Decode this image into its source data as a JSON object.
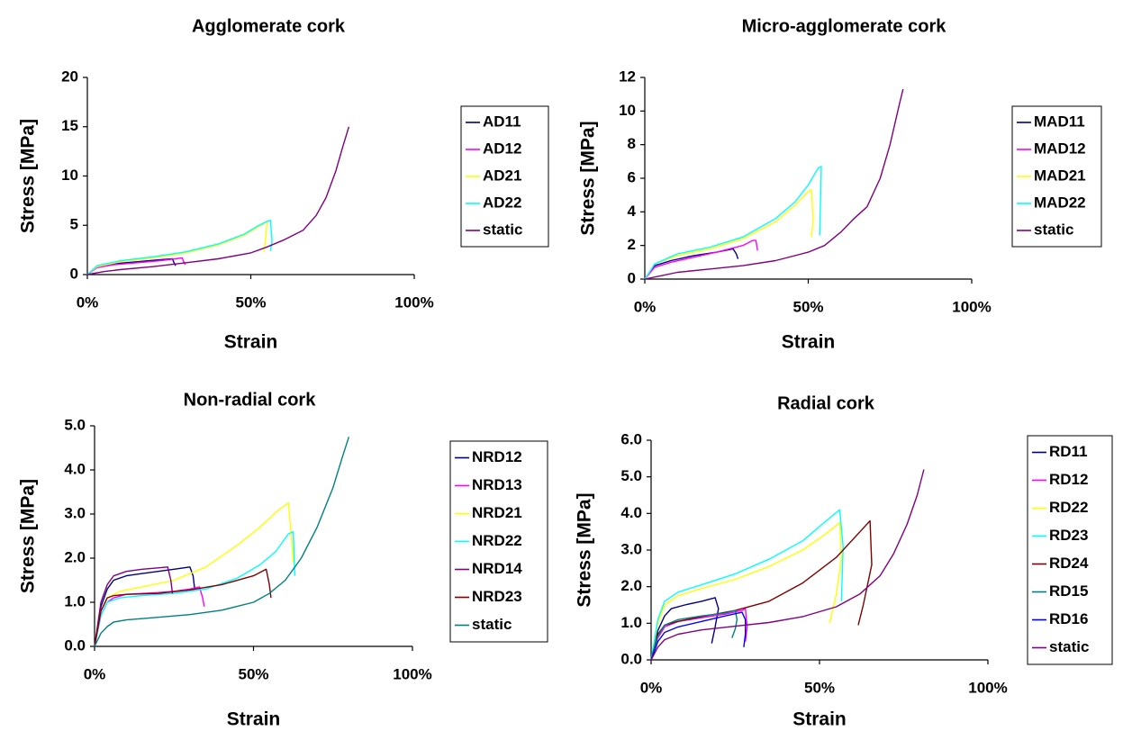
{
  "chart_data": [
    {
      "type": "line",
      "title": "Agglomerate cork",
      "xlabel": "Strain",
      "ylabel": "Stress [MPa]",
      "xlim": [
        0,
        100
      ],
      "ylim": [
        0,
        20
      ],
      "x_ticks": [
        "0%",
        "50%",
        "100%"
      ],
      "y_ticks": [
        "0",
        "5",
        "10",
        "15",
        "20"
      ],
      "legend_position": "right",
      "series": [
        {
          "name": "AD11",
          "color": "#000080",
          "x": [
            0,
            3,
            8,
            15,
            22,
            26,
            26.5,
            27
          ],
          "y": [
            0,
            0.8,
            1.1,
            1.3,
            1.5,
            1.6,
            1.2,
            0.9
          ]
        },
        {
          "name": "AD12",
          "color": "#ff00ff",
          "x": [
            0,
            3,
            8,
            15,
            22,
            27,
            29,
            29.5,
            30
          ],
          "y": [
            0,
            0.7,
            1.0,
            1.2,
            1.4,
            1.6,
            1.7,
            1.3,
            1.0
          ]
        },
        {
          "name": "AD21",
          "color": "#ffff00",
          "x": [
            0,
            3,
            10,
            20,
            30,
            40,
            48,
            52,
            54,
            55,
            54.5,
            54
          ],
          "y": [
            0,
            0.8,
            1.3,
            1.7,
            2.2,
            3.0,
            4.0,
            4.8,
            5.2,
            5.4,
            3.5,
            2.3
          ]
        },
        {
          "name": "AD22",
          "color": "#00ffff",
          "x": [
            0,
            3,
            10,
            20,
            30,
            40,
            48,
            52,
            55,
            56,
            56.5,
            56
          ],
          "y": [
            0,
            0.9,
            1.4,
            1.8,
            2.3,
            3.1,
            4.1,
            4.9,
            5.4,
            5.5,
            3.4,
            2.4
          ]
        },
        {
          "name": "static",
          "color": "#800080",
          "x": [
            0,
            5,
            10,
            20,
            30,
            40,
            50,
            55,
            60,
            63,
            66,
            70,
            73,
            76,
            78,
            80
          ],
          "y": [
            0,
            0.3,
            0.5,
            0.8,
            1.2,
            1.6,
            2.2,
            2.8,
            3.5,
            4.0,
            4.5,
            6.0,
            7.8,
            10.5,
            12.8,
            15.0
          ]
        }
      ]
    },
    {
      "type": "line",
      "title": "Micro-agglomerate cork",
      "xlabel": "Strain",
      "ylabel": "Stress [MPa]",
      "xlim": [
        0,
        100
      ],
      "ylim": [
        0,
        12
      ],
      "x_ticks": [
        "0%",
        "50%",
        "100%"
      ],
      "y_ticks": [
        "0",
        "2",
        "4",
        "6",
        "8",
        "10",
        "12"
      ],
      "legend_position": "right",
      "series": [
        {
          "name": "MAD11",
          "color": "#000080",
          "x": [
            0,
            3,
            8,
            15,
            22,
            27,
            28,
            28.5
          ],
          "y": [
            0,
            0.8,
            1.1,
            1.4,
            1.6,
            1.8,
            1.5,
            1.2
          ]
        },
        {
          "name": "MAD12",
          "color": "#ff00ff",
          "x": [
            0,
            3,
            8,
            15,
            22,
            30,
            33,
            34,
            34.5
          ],
          "y": [
            0,
            0.7,
            1.0,
            1.3,
            1.6,
            2.0,
            2.3,
            2.3,
            1.7
          ]
        },
        {
          "name": "MAD21",
          "color": "#ffff00",
          "x": [
            0,
            3,
            10,
            20,
            30,
            40,
            46,
            50,
            51,
            51.5,
            51
          ],
          "y": [
            0,
            0.9,
            1.4,
            1.8,
            2.4,
            3.4,
            4.4,
            5.2,
            5.3,
            3.5,
            2.5
          ]
        },
        {
          "name": "MAD22",
          "color": "#00ffff",
          "x": [
            0,
            3,
            10,
            20,
            30,
            40,
            46,
            50,
            53,
            54,
            53.5
          ],
          "y": [
            0,
            0.9,
            1.5,
            1.9,
            2.5,
            3.6,
            4.6,
            5.6,
            6.6,
            6.7,
            2.6
          ]
        },
        {
          "name": "static",
          "color": "#800080",
          "x": [
            0,
            5,
            10,
            20,
            30,
            40,
            50,
            55,
            60,
            64,
            68,
            72,
            75,
            78,
            79
          ],
          "y": [
            0,
            0.2,
            0.4,
            0.6,
            0.8,
            1.1,
            1.6,
            2.0,
            2.8,
            3.6,
            4.3,
            6.0,
            8.0,
            10.5,
            11.3
          ]
        }
      ]
    },
    {
      "type": "line",
      "title": "Non-radial cork",
      "xlabel": "Strain",
      "ylabel": "Stress [MPa]",
      "xlim": [
        0,
        100
      ],
      "ylim": [
        0,
        5
      ],
      "x_ticks": [
        "0%",
        "50%",
        "100%"
      ],
      "y_ticks": [
        "0.0",
        "1.0",
        "2.0",
        "3.0",
        "4.0",
        "5.0"
      ],
      "legend_position": "right",
      "series": [
        {
          "name": "NRD12",
          "color": "#000080",
          "x": [
            0,
            2,
            4,
            6,
            10,
            15,
            20,
            25,
            30,
            31,
            31.5
          ],
          "y": [
            0,
            0.9,
            1.3,
            1.5,
            1.6,
            1.65,
            1.7,
            1.75,
            1.8,
            1.6,
            1.3
          ]
        },
        {
          "name": "NRD13",
          "color": "#ff00ff",
          "x": [
            0,
            2,
            4,
            6,
            10,
            15,
            20,
            25,
            30,
            33,
            34,
            34.5
          ],
          "y": [
            0,
            0.7,
            1.0,
            1.1,
            1.18,
            1.2,
            1.22,
            1.25,
            1.3,
            1.35,
            1.1,
            0.9
          ]
        },
        {
          "name": "NRD21",
          "color": "#ffff00",
          "x": [
            0,
            2,
            4,
            8,
            15,
            25,
            35,
            45,
            52,
            58,
            61,
            62,
            62.5
          ],
          "y": [
            0,
            0.8,
            1.1,
            1.25,
            1.35,
            1.5,
            1.8,
            2.3,
            2.7,
            3.1,
            3.25,
            2.4,
            1.9
          ]
        },
        {
          "name": "NRD22",
          "color": "#00ffff",
          "x": [
            0,
            2,
            4,
            8,
            15,
            25,
            35,
            45,
            52,
            57,
            61,
            62.5,
            63
          ],
          "y": [
            0,
            0.7,
            1.0,
            1.1,
            1.15,
            1.2,
            1.3,
            1.55,
            1.85,
            2.15,
            2.55,
            2.6,
            1.6
          ]
        },
        {
          "name": "NRD14",
          "color": "#800080",
          "x": [
            0,
            2,
            4,
            6,
            10,
            15,
            20,
            23,
            24,
            24.5
          ],
          "y": [
            0,
            1.0,
            1.4,
            1.6,
            1.7,
            1.75,
            1.78,
            1.8,
            1.5,
            1.2
          ]
        },
        {
          "name": "NRD23",
          "color": "#800000",
          "x": [
            0,
            2,
            4,
            6,
            10,
            20,
            30,
            40,
            50,
            54,
            55,
            55.5
          ],
          "y": [
            0,
            0.8,
            1.1,
            1.15,
            1.18,
            1.2,
            1.28,
            1.4,
            1.6,
            1.75,
            1.4,
            1.1
          ]
        },
        {
          "name": "static",
          "color": "#008080",
          "x": [
            0,
            2,
            4,
            6,
            10,
            20,
            30,
            40,
            50,
            55,
            60,
            65,
            70,
            75,
            78,
            80
          ],
          "y": [
            0,
            0.3,
            0.45,
            0.55,
            0.6,
            0.66,
            0.72,
            0.82,
            1.0,
            1.2,
            1.5,
            2.0,
            2.7,
            3.6,
            4.3,
            4.75
          ]
        }
      ]
    },
    {
      "type": "line",
      "title": "Radial cork",
      "xlabel": "Strain",
      "ylabel": "Stress [MPa]",
      "xlim": [
        0,
        100
      ],
      "ylim": [
        0,
        6
      ],
      "x_ticks": [
        "0%",
        "50%",
        "100%"
      ],
      "y_ticks": [
        "0.0",
        "1.0",
        "2.0",
        "3.0",
        "4.0",
        "5.0",
        "6.0"
      ],
      "legend_position": "right",
      "series": [
        {
          "name": "RD11",
          "color": "#000080",
          "x": [
            0,
            2,
            4,
            6,
            10,
            15,
            19,
            20,
            19,
            18
          ],
          "y": [
            0,
            0.8,
            1.2,
            1.4,
            1.5,
            1.6,
            1.7,
            1.4,
            0.9,
            0.45
          ]
        },
        {
          "name": "RD12",
          "color": "#ff00ff",
          "x": [
            0,
            2,
            4,
            8,
            15,
            22,
            27,
            28,
            28.5,
            28
          ],
          "y": [
            0,
            0.6,
            0.9,
            1.05,
            1.15,
            1.25,
            1.35,
            1.4,
            0.9,
            0.5
          ]
        },
        {
          "name": "RD22",
          "color": "#ffff00",
          "x": [
            0,
            2,
            4,
            8,
            15,
            25,
            35,
            45,
            52,
            56,
            56.5,
            55,
            53
          ],
          "y": [
            0,
            1.0,
            1.5,
            1.75,
            1.95,
            2.2,
            2.55,
            3.0,
            3.45,
            3.75,
            2.8,
            1.8,
            1.0
          ]
        },
        {
          "name": "RD23",
          "color": "#00ffff",
          "x": [
            0,
            2,
            4,
            8,
            15,
            25,
            35,
            45,
            52,
            56,
            57,
            56.5
          ],
          "y": [
            0,
            1.1,
            1.6,
            1.85,
            2.05,
            2.35,
            2.75,
            3.25,
            3.8,
            4.1,
            3.1,
            1.6
          ]
        },
        {
          "name": "RD24",
          "color": "#800000",
          "x": [
            0,
            2,
            4,
            8,
            15,
            25,
            35,
            45,
            55,
            62,
            65,
            65.5,
            63,
            61.5
          ],
          "y": [
            0,
            0.7,
            0.95,
            1.05,
            1.18,
            1.35,
            1.6,
            2.1,
            2.8,
            3.5,
            3.8,
            2.6,
            1.5,
            0.95
          ]
        },
        {
          "name": "RD15",
          "color": "#008080",
          "x": [
            0,
            2,
            4,
            8,
            15,
            22,
            25,
            25.5,
            25,
            24
          ],
          "y": [
            0,
            0.65,
            0.95,
            1.1,
            1.2,
            1.28,
            1.35,
            1.1,
            0.85,
            0.6
          ]
        },
        {
          "name": "RD16",
          "color": "#0000ff",
          "x": [
            0,
            2,
            4,
            8,
            15,
            22,
            27,
            28,
            28,
            27.5
          ],
          "y": [
            0,
            0.5,
            0.75,
            0.9,
            1.05,
            1.2,
            1.3,
            1.1,
            0.7,
            0.35
          ]
        },
        {
          "name": "static",
          "color": "#800080",
          "x": [
            0,
            2,
            4,
            8,
            15,
            25,
            35,
            45,
            55,
            62,
            68,
            72,
            76,
            79,
            81
          ],
          "y": [
            0,
            0.35,
            0.55,
            0.7,
            0.82,
            0.92,
            1.02,
            1.18,
            1.45,
            1.8,
            2.3,
            2.9,
            3.7,
            4.5,
            5.2
          ]
        }
      ]
    }
  ]
}
